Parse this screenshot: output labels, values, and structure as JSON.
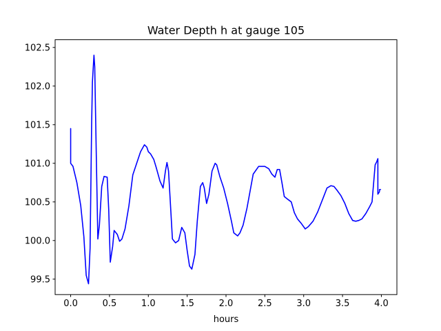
{
  "chart_data": {
    "type": "line",
    "title": "Water Depth h at gauge 105",
    "xlabel": "hours",
    "ylabel": "",
    "xlim": [
      -0.2,
      4.2
    ],
    "ylim": [
      99.3,
      102.6
    ],
    "xticks": [
      0.0,
      0.5,
      1.0,
      1.5,
      2.0,
      2.5,
      3.0,
      3.5,
      4.0
    ],
    "xtick_labels": [
      "0.0",
      "0.5",
      "1.0",
      "1.5",
      "2.0",
      "2.5",
      "3.0",
      "3.5",
      "4.0"
    ],
    "yticks": [
      99.5,
      100.0,
      100.5,
      101.0,
      101.5,
      102.0,
      102.5
    ],
    "ytick_labels": [
      "99.5",
      "100.0",
      "100.5",
      "101.0",
      "101.5",
      "102.0",
      "102.5"
    ],
    "grid": false,
    "legend": "none",
    "series": [
      {
        "color": "#0000ff",
        "x": [
          0.0,
          0.0,
          0.03,
          0.08,
          0.13,
          0.17,
          0.2,
          0.23,
          0.25,
          0.27,
          0.28,
          0.3,
          0.31,
          0.33,
          0.35,
          0.37,
          0.4,
          0.43,
          0.47,
          0.49,
          0.51,
          0.54,
          0.56,
          0.6,
          0.63,
          0.66,
          0.7,
          0.75,
          0.8,
          0.85,
          0.9,
          0.95,
          0.98,
          1.0,
          1.03,
          1.07,
          1.1,
          1.15,
          1.19,
          1.22,
          1.24,
          1.26,
          1.28,
          1.31,
          1.35,
          1.39,
          1.43,
          1.47,
          1.5,
          1.53,
          1.56,
          1.6,
          1.63,
          1.67,
          1.7,
          1.72,
          1.75,
          1.78,
          1.82,
          1.86,
          1.88,
          1.92,
          1.97,
          2.02,
          2.07,
          2.1,
          2.15,
          2.18,
          2.22,
          2.27,
          2.35,
          2.42,
          2.46,
          2.5,
          2.55,
          2.59,
          2.63,
          2.66,
          2.69,
          2.72,
          2.75,
          2.8,
          2.84,
          2.88,
          2.92,
          2.97,
          3.02,
          3.06,
          3.12,
          3.18,
          3.25,
          3.3,
          3.35,
          3.39,
          3.43,
          3.48,
          3.53,
          3.58,
          3.63,
          3.67,
          3.71,
          3.75,
          3.8,
          3.85,
          3.88,
          3.92,
          3.94,
          3.955,
          3.955,
          3.975,
          3.975,
          3.99
        ],
        "y": [
          101.45,
          101.0,
          100.96,
          100.75,
          100.45,
          100.05,
          99.55,
          99.44,
          99.9,
          101.5,
          102.05,
          102.4,
          102.25,
          101.1,
          100.02,
          100.2,
          100.7,
          100.83,
          100.82,
          100.4,
          99.72,
          99.92,
          100.13,
          100.08,
          99.99,
          100.02,
          100.15,
          100.45,
          100.85,
          101.0,
          101.15,
          101.24,
          101.21,
          101.15,
          101.12,
          101.05,
          100.95,
          100.77,
          100.68,
          100.9,
          101.01,
          100.9,
          100.55,
          100.02,
          99.97,
          100.0,
          100.17,
          100.1,
          99.87,
          99.67,
          99.63,
          99.82,
          100.25,
          100.7,
          100.75,
          100.68,
          100.48,
          100.6,
          100.9,
          101.0,
          100.98,
          100.83,
          100.68,
          100.48,
          100.25,
          100.1,
          100.06,
          100.1,
          100.2,
          100.42,
          100.86,
          100.96,
          100.96,
          100.96,
          100.93,
          100.86,
          100.82,
          100.92,
          100.92,
          100.75,
          100.57,
          100.53,
          100.5,
          100.36,
          100.28,
          100.22,
          100.15,
          100.18,
          100.25,
          100.37,
          100.55,
          100.68,
          100.71,
          100.7,
          100.65,
          100.58,
          100.48,
          100.35,
          100.26,
          100.25,
          100.26,
          100.28,
          100.35,
          100.44,
          100.5,
          100.98,
          101.02,
          101.06,
          100.6,
          100.63,
          100.66,
          100.66
        ]
      }
    ]
  }
}
